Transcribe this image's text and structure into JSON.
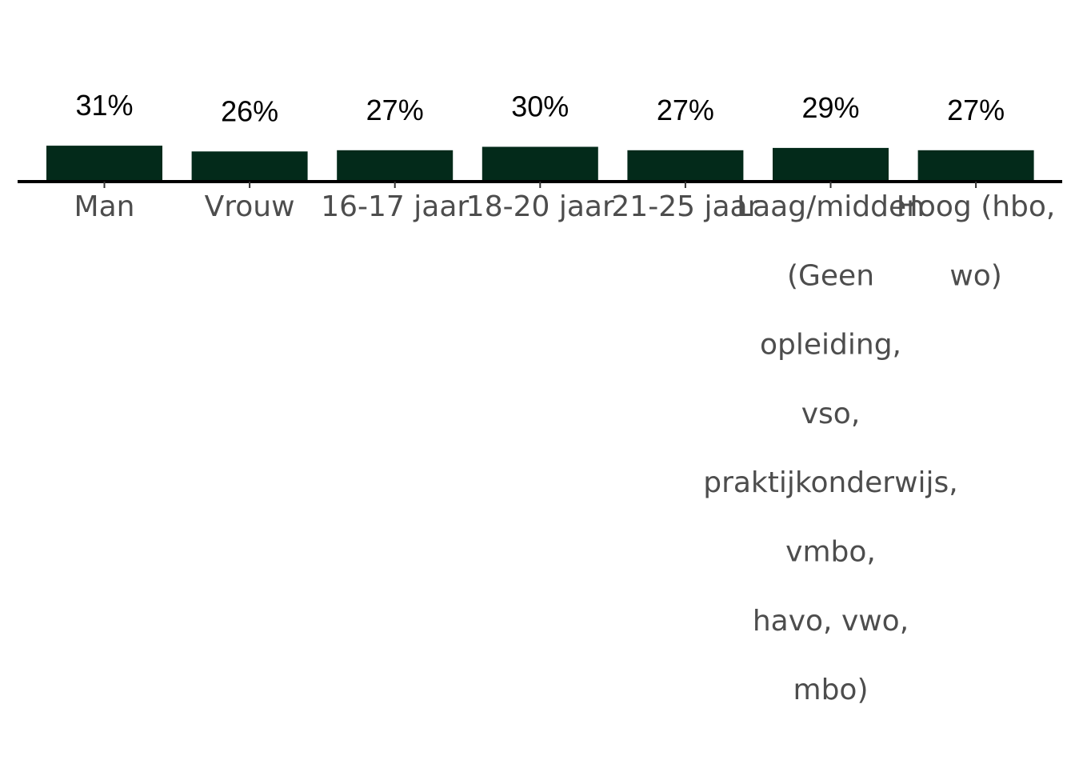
{
  "chart_data": {
    "type": "bar",
    "categories": [
      [
        "Man"
      ],
      [
        "Vrouw"
      ],
      [
        "16-17 jaar"
      ],
      [
        "18-20 jaar"
      ],
      [
        "21-25 jaar"
      ],
      [
        "Laag/midden",
        "(Geen",
        "opleiding,",
        "vso,",
        "praktijkonderwijs,",
        "vmbo,",
        "havo, vwo,",
        "mbo)"
      ],
      [
        "Hoog (hbo,",
        "wo)"
      ]
    ],
    "values": [
      31,
      26,
      27,
      30,
      27,
      29,
      27
    ],
    "value_labels": [
      "31%",
      "26%",
      "27%",
      "30%",
      "27%",
      "29%",
      "27%"
    ],
    "ylim": [
      0,
      100
    ],
    "grid": false,
    "legend": "none",
    "colors": {
      "bar": "#032a1a",
      "value_label": "#000000",
      "category_label": "#4d4d4d",
      "axis": "#000000"
    }
  }
}
